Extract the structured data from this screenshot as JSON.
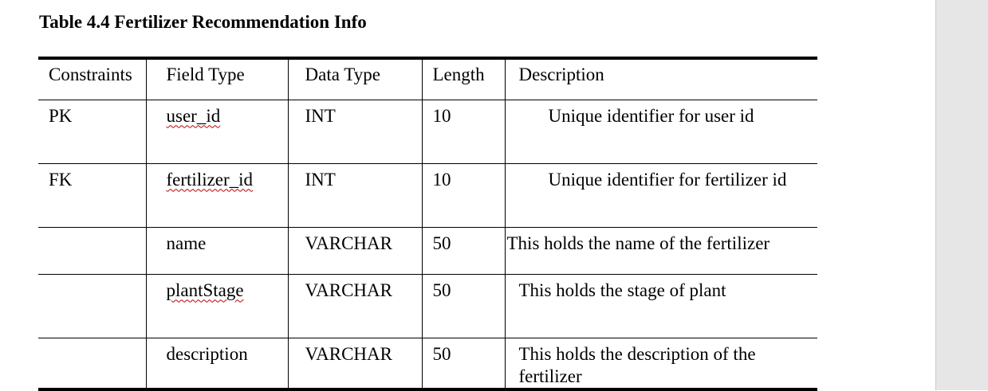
{
  "caption": "Table 4.4 Fertilizer Recommendation Info",
  "table": {
    "headers": [
      "Constraints",
      "Field Type",
      "Data Type",
      "Length",
      "Description"
    ],
    "rows": [
      {
        "constraint": "PK",
        "field": "user_id",
        "type": "INT",
        "length": "10",
        "description": "Unique identifier for user id"
      },
      {
        "constraint": "FK",
        "field": "fertilizer_id",
        "type": "INT",
        "length": "10",
        "description": "Unique identifier for fertilizer id"
      },
      {
        "constraint": "",
        "field": "name",
        "type": "VARCHAR",
        "length": "50",
        "description": "This holds the name of the fertilizer"
      },
      {
        "constraint": "",
        "field": "plantStage",
        "type": "VARCHAR",
        "length": "50",
        "description": "This holds the stage of plant"
      },
      {
        "constraint": "",
        "field": "description",
        "type": "VARCHAR",
        "length": "50",
        "description": "This holds the description of the fertilizer"
      }
    ]
  }
}
